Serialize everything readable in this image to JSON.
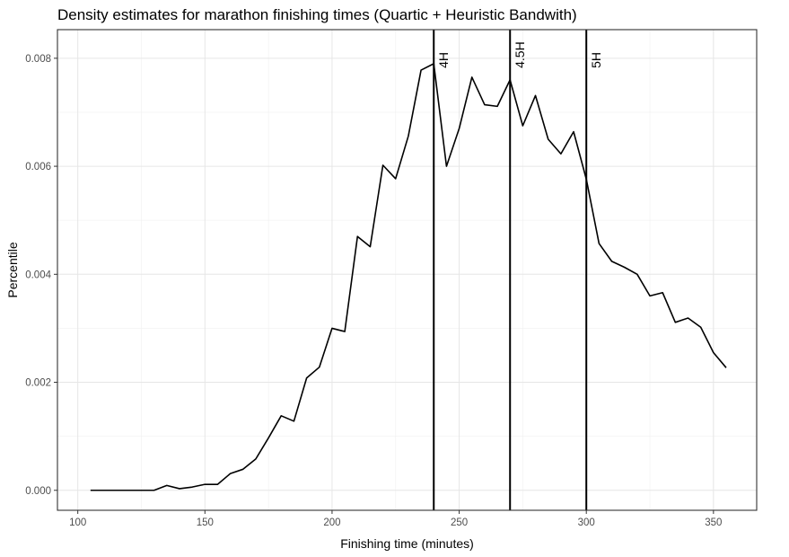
{
  "chart_data": {
    "type": "line",
    "title": "Density estimates for marathon finishing times (Quartic + Heuristic Bandwith)",
    "xlabel": "Finishing time (minutes)",
    "ylabel": "Percentile",
    "xlim": [
      92,
      367
    ],
    "ylim": [
      -0.00037,
      0.00853
    ],
    "x_ticks": [
      100,
      150,
      200,
      250,
      300,
      350
    ],
    "x_tick_labels": [
      "100",
      "150",
      "200",
      "250",
      "300",
      "350"
    ],
    "y_ticks": [
      0.0,
      0.002,
      0.004,
      0.006,
      0.008
    ],
    "y_tick_labels": [
      "0.000",
      "0.002",
      "0.004",
      "0.006",
      "0.008"
    ],
    "grid": true,
    "legend": "none",
    "line_color": "#000000",
    "series": [
      {
        "x": [
          105,
          110,
          115,
          120,
          125,
          130,
          135,
          140,
          145,
          150,
          155,
          160,
          165,
          170,
          175,
          180,
          185,
          190,
          195,
          200,
          205,
          210,
          215,
          220,
          225,
          230,
          235,
          240,
          245,
          250,
          255,
          260,
          265,
          270,
          275,
          280,
          285,
          290,
          295,
          300,
          305,
          310,
          315,
          320,
          325,
          330,
          335,
          340,
          345,
          350,
          355
        ],
        "y": [
          0.0,
          0.0,
          0.0,
          0.0,
          0.0,
          0.0,
          9e-05,
          3e-05,
          6e-05,
          0.00011,
          0.00011,
          0.00031,
          0.00039,
          0.00058,
          0.00097,
          0.00138,
          0.00128,
          0.00208,
          0.00228,
          0.003,
          0.00294,
          0.0047,
          0.00451,
          0.00602,
          0.00577,
          0.00656,
          0.00778,
          0.0079,
          0.006,
          0.0067,
          0.00765,
          0.00714,
          0.00711,
          0.0076,
          0.00675,
          0.00731,
          0.0065,
          0.00623,
          0.00664,
          0.00576,
          0.00457,
          0.00424,
          0.00413,
          0.004,
          0.0036,
          0.00366,
          0.00311,
          0.00319,
          0.00302,
          0.00255,
          0.00227
        ]
      }
    ],
    "vlines": [
      {
        "x": 240,
        "label": "4H"
      },
      {
        "x": 270,
        "label": "4.5H"
      },
      {
        "x": 300,
        "label": "5H"
      }
    ]
  }
}
